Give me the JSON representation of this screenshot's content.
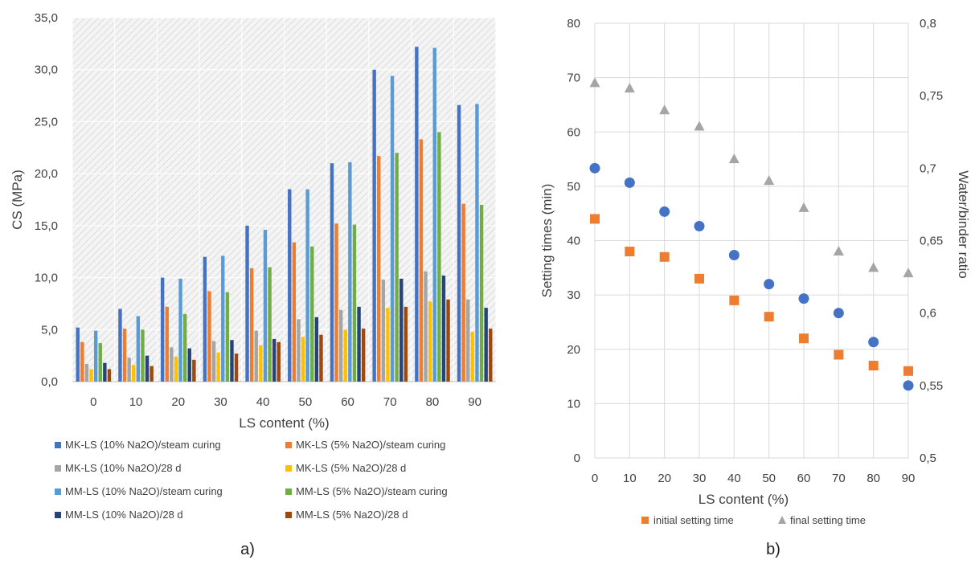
{
  "panel_labels": {
    "a": "a)",
    "b": "b)"
  },
  "chart_data": [
    {
      "type": "bar",
      "grid": true,
      "legend_position": "bottom",
      "xlabel": "LS content (%)",
      "ylabel": "CS (MPa)",
      "ylim": [
        0,
        35
      ],
      "y_ticks": [
        "0,0",
        "5,0",
        "10,0",
        "15,0",
        "20,0",
        "25,0",
        "30,0",
        "35,0"
      ],
      "categories": [
        "0",
        "10",
        "20",
        "30",
        "40",
        "50",
        "60",
        "70",
        "80",
        "90"
      ],
      "series": [
        {
          "name": "MK-LS  (10% Na2O)/steam curing",
          "color": "#4472C4",
          "values": [
            5.2,
            7.0,
            10.0,
            12.0,
            15.0,
            18.5,
            21.0,
            30.0,
            32.2,
            26.6
          ]
        },
        {
          "name": "MK-LS (5% Na2O)/steam curing",
          "color": "#ED7D31",
          "values": [
            3.8,
            5.1,
            7.2,
            8.7,
            10.9,
            13.4,
            15.2,
            21.7,
            23.3,
            17.1
          ]
        },
        {
          "name": "MK-LS (10% Na2O)/28 d",
          "color": "#A5A5A5",
          "values": [
            1.7,
            2.3,
            3.3,
            3.9,
            4.9,
            6.0,
            6.9,
            9.8,
            10.6,
            7.9
          ]
        },
        {
          "name": "MK-LS  (5% Na2O)/28 d",
          "color": "#FFC000",
          "values": [
            1.2,
            1.6,
            2.4,
            2.8,
            3.5,
            4.3,
            5.0,
            7.1,
            7.7,
            4.8
          ]
        },
        {
          "name": "MM-LS  (10% Na2O)/steam curing",
          "color": "#5B9BD5",
          "values": [
            4.9,
            6.3,
            9.9,
            12.1,
            14.6,
            18.5,
            21.1,
            29.4,
            32.1,
            26.7
          ]
        },
        {
          "name": "MM-LS (5% Na2O)/steam curing",
          "color": "#70AD47",
          "values": [
            3.7,
            5.0,
            6.5,
            8.6,
            11.0,
            13.0,
            15.1,
            22.0,
            24.0,
            17.0
          ]
        },
        {
          "name": "MM-LS (10% Na2O)/28 d",
          "color": "#264478",
          "values": [
            1.8,
            2.5,
            3.2,
            4.0,
            4.1,
            6.2,
            7.2,
            9.9,
            10.2,
            7.1
          ]
        },
        {
          "name": "MM-LS  (5% Na2O)/28 d",
          "color": "#9E480E",
          "values": [
            1.2,
            1.5,
            2.1,
            2.7,
            3.8,
            4.5,
            5.1,
            7.2,
            7.9,
            5.1
          ]
        }
      ]
    },
    {
      "type": "scatter",
      "grid": true,
      "legend_position": "bottom",
      "xlabel": "LS content (%)",
      "ylabel": "Setting times (min)",
      "y2label": "Water/binder ratio",
      "xlim": [
        0,
        90
      ],
      "ylim": [
        0,
        80
      ],
      "y2lim": [
        0.5,
        0.8
      ],
      "x_ticks": [
        "0",
        "10",
        "20",
        "30",
        "40",
        "50",
        "60",
        "70",
        "80",
        "90"
      ],
      "y_ticks": [
        "0",
        "10",
        "20",
        "30",
        "40",
        "50",
        "60",
        "70",
        "80"
      ],
      "y2_ticks": [
        "0,5",
        "0,55",
        "0,6",
        "0,65",
        "0,7",
        "0,75",
        "0,8"
      ],
      "x": [
        0,
        10,
        20,
        30,
        40,
        50,
        60,
        70,
        80,
        90
      ],
      "series": [
        {
          "name": "initial setting time",
          "axis": "left",
          "marker": "square",
          "color": "#ED7D31",
          "values": [
            44,
            38,
            37,
            33,
            29,
            26,
            22,
            19,
            17,
            16
          ]
        },
        {
          "name": "final setting time",
          "axis": "left",
          "marker": "triangle",
          "color": "#A5A5A5",
          "values": [
            69,
            68,
            64,
            61,
            55,
            51,
            46,
            38,
            35,
            34
          ]
        },
        {
          "axis": "right",
          "marker": "circle",
          "color": "#4472C4",
          "values": [
            0.7,
            0.69,
            0.67,
            0.66,
            0.64,
            0.62,
            0.61,
            0.6,
            0.58,
            0.55
          ]
        }
      ]
    }
  ]
}
